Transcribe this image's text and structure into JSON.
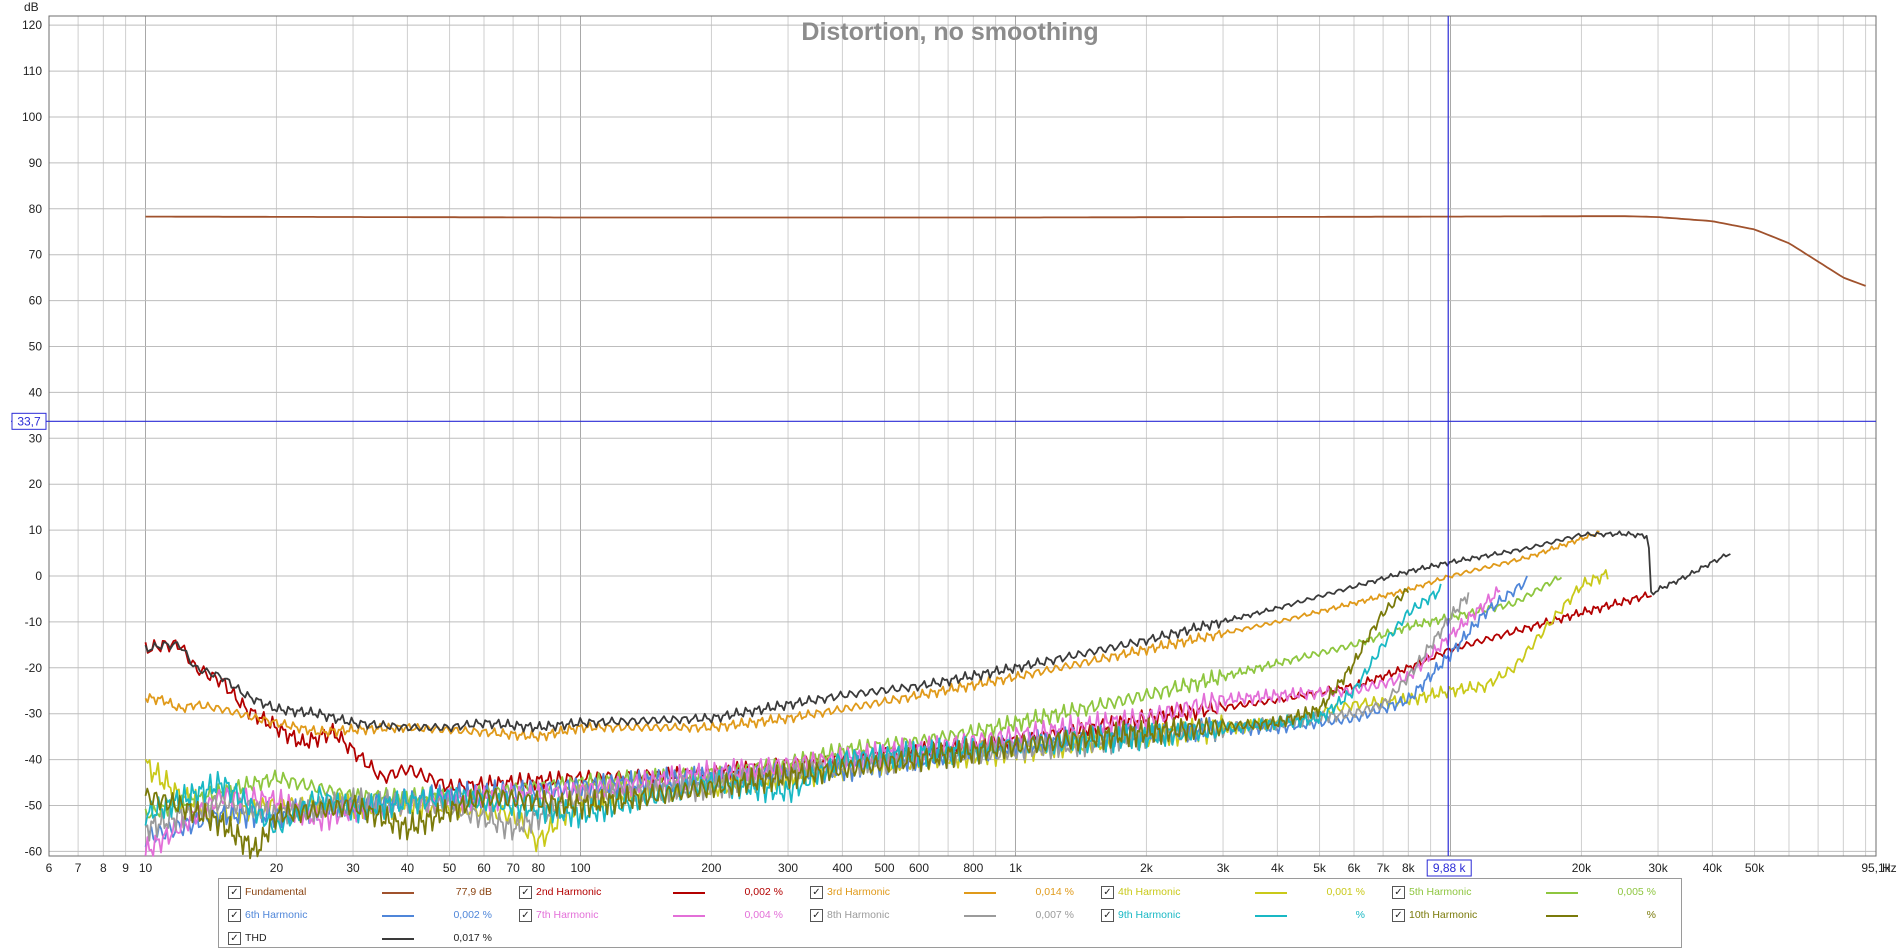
{
  "chart_data": {
    "type": "line",
    "title": "Distortion, no smoothing",
    "ylabel": "dB",
    "xunit": "Hz",
    "xscale": "log",
    "xlim": [
      6,
      95100
    ],
    "ylim": [
      -61,
      122
    ],
    "grid": true,
    "legend_position": "bottom",
    "y_ticks": [
      "120",
      "110",
      "100",
      "90",
      "80",
      "70",
      "60",
      "50",
      "40",
      "30",
      "20",
      "10",
      "0",
      "-10",
      "-20",
      "-30",
      "-40",
      "-50",
      "-60"
    ],
    "x_ticks": [
      {
        "v": 6,
        "label": "6"
      },
      {
        "v": 7,
        "label": "7"
      },
      {
        "v": 8,
        "label": "8"
      },
      {
        "v": 9,
        "label": "9"
      },
      {
        "v": 10,
        "label": "10"
      },
      {
        "v": 20,
        "label": "20"
      },
      {
        "v": 30,
        "label": "30"
      },
      {
        "v": 40,
        "label": "40"
      },
      {
        "v": 50,
        "label": "50"
      },
      {
        "v": 60,
        "label": "60"
      },
      {
        "v": 70,
        "label": "70"
      },
      {
        "v": 80,
        "label": "80"
      },
      {
        "v": 100,
        "label": "100"
      },
      {
        "v": 200,
        "label": "200"
      },
      {
        "v": 300,
        "label": "300"
      },
      {
        "v": 400,
        "label": "400"
      },
      {
        "v": 500,
        "label": "500"
      },
      {
        "v": 600,
        "label": "600"
      },
      {
        "v": 800,
        "label": "800"
      },
      {
        "v": 1000,
        "label": "1k"
      },
      {
        "v": 2000,
        "label": "2k"
      },
      {
        "v": 3000,
        "label": "3k"
      },
      {
        "v": 4000,
        "label": "4k"
      },
      {
        "v": 5000,
        "label": "5k"
      },
      {
        "v": 6000,
        "label": "6k"
      },
      {
        "v": 7000,
        "label": "7k"
      },
      {
        "v": 8000,
        "label": "8k"
      },
      {
        "v": 20000,
        "label": "20k"
      },
      {
        "v": 30000,
        "label": "30k"
      },
      {
        "v": 40000,
        "label": "40k"
      },
      {
        "v": 50000,
        "label": "50k"
      },
      {
        "v": 95100,
        "label": "95,1k"
      }
    ],
    "cursor": {
      "x": 9880,
      "x_label": "9,88 k",
      "y": 33.7,
      "y_label": "33,7",
      "color": "#2b2bd6"
    },
    "series": [
      {
        "name": "Fundamental",
        "color": "#a0522d",
        "value": "77,9 dB",
        "noise": 0,
        "points": [
          [
            10,
            78.3
          ],
          [
            100,
            78.1
          ],
          [
            1000,
            78.1
          ],
          [
            10000,
            78.3
          ],
          [
            25000,
            78.4
          ],
          [
            30000,
            78.2
          ],
          [
            40000,
            77.3
          ],
          [
            50000,
            75.5
          ],
          [
            60000,
            72.5
          ],
          [
            70000,
            68.5
          ],
          [
            80000,
            65
          ],
          [
            90000,
            63.2
          ]
        ]
      },
      {
        "name": "2nd Harmonic",
        "color": "#b30000",
        "value": "0,002 %",
        "noise": 2,
        "points": [
          [
            10,
            -16
          ],
          [
            11,
            -15
          ],
          [
            12,
            -15
          ],
          [
            13,
            -20
          ],
          [
            15,
            -23
          ],
          [
            17,
            -29
          ],
          [
            20,
            -33
          ],
          [
            23,
            -36.5
          ],
          [
            27,
            -34
          ],
          [
            30,
            -38
          ],
          [
            35,
            -44
          ],
          [
            40,
            -42
          ],
          [
            50,
            -46
          ],
          [
            70,
            -45
          ],
          [
            100,
            -44
          ],
          [
            200,
            -43
          ],
          [
            400,
            -40
          ],
          [
            1000,
            -36
          ],
          [
            2000,
            -31
          ],
          [
            4000,
            -27
          ],
          [
            6000,
            -24
          ],
          [
            8000,
            -20
          ],
          [
            10000,
            -16
          ],
          [
            20000,
            -8
          ],
          [
            29000,
            -4
          ]
        ]
      },
      {
        "name": "3rd Harmonic",
        "color": "#e09a1a",
        "value": "0,014 %",
        "noise": 1.2,
        "points": [
          [
            10,
            -26.5
          ],
          [
            11,
            -27
          ],
          [
            12,
            -29
          ],
          [
            13,
            -28
          ],
          [
            15,
            -29
          ],
          [
            18,
            -31
          ],
          [
            20,
            -32
          ],
          [
            25,
            -34
          ],
          [
            30,
            -33.5
          ],
          [
            40,
            -33
          ],
          [
            60,
            -34
          ],
          [
            80,
            -35
          ],
          [
            100,
            -33
          ],
          [
            200,
            -33
          ],
          [
            300,
            -31
          ],
          [
            400,
            -29
          ],
          [
            600,
            -26
          ],
          [
            1000,
            -22
          ],
          [
            2000,
            -16
          ],
          [
            4000,
            -10
          ],
          [
            8000,
            -3
          ],
          [
            10000,
            0
          ],
          [
            15000,
            4
          ],
          [
            22000,
            9.5
          ]
        ]
      },
      {
        "name": "4th Harmonic",
        "color": "#c9c919",
        "value": "0,001 %",
        "noise": 3,
        "points": [
          [
            10,
            -41
          ],
          [
            12,
            -48
          ],
          [
            15,
            -52
          ],
          [
            20,
            -50
          ],
          [
            30,
            -50
          ],
          [
            50,
            -50
          ],
          [
            70,
            -52
          ],
          [
            80,
            -58
          ],
          [
            100,
            -48
          ],
          [
            200,
            -46
          ],
          [
            400,
            -42
          ],
          [
            1000,
            -38
          ],
          [
            2000,
            -35
          ],
          [
            4000,
            -32
          ],
          [
            6000,
            -28
          ],
          [
            8000,
            -27
          ],
          [
            10000,
            -25
          ],
          [
            12000,
            -24
          ],
          [
            14000,
            -20
          ],
          [
            17000,
            -10
          ],
          [
            20000,
            -2
          ],
          [
            23000,
            0.5
          ]
        ]
      },
      {
        "name": "5th Harmonic",
        "color": "#8ec63f",
        "value": "0,005 %",
        "noise": 2,
        "points": [
          [
            10,
            -52
          ],
          [
            15,
            -47
          ],
          [
            20,
            -44
          ],
          [
            30,
            -48
          ],
          [
            50,
            -48
          ],
          [
            100,
            -45
          ],
          [
            200,
            -43
          ],
          [
            300,
            -41
          ],
          [
            400,
            -38
          ],
          [
            600,
            -36
          ],
          [
            800,
            -34
          ],
          [
            1000,
            -32
          ],
          [
            2000,
            -26
          ],
          [
            4000,
            -19
          ],
          [
            6000,
            -15
          ],
          [
            8000,
            -11
          ],
          [
            10000,
            -9
          ],
          [
            14000,
            -6
          ],
          [
            18000,
            0
          ]
        ]
      },
      {
        "name": "6th Harmonic",
        "color": "#4f86d9",
        "value": "0,002 %",
        "noise": 3,
        "points": [
          [
            10,
            -57
          ],
          [
            15,
            -52
          ],
          [
            20,
            -52
          ],
          [
            30,
            -50
          ],
          [
            50,
            -48
          ],
          [
            100,
            -46
          ],
          [
            200,
            -44
          ],
          [
            400,
            -42
          ],
          [
            1000,
            -37
          ],
          [
            2000,
            -34
          ],
          [
            4000,
            -33
          ],
          [
            6000,
            -31
          ],
          [
            8000,
            -27
          ],
          [
            10000,
            -17
          ],
          [
            12000,
            -8
          ],
          [
            15000,
            -1
          ]
        ]
      },
      {
        "name": "7th Harmonic",
        "color": "#e36fd8",
        "value": "0,004 %",
        "noise": 3,
        "points": [
          [
            10,
            -60
          ],
          [
            15,
            -48
          ],
          [
            20,
            -49
          ],
          [
            25,
            -53
          ],
          [
            30,
            -51
          ],
          [
            50,
            -49
          ],
          [
            100,
            -47
          ],
          [
            200,
            -43
          ],
          [
            400,
            -40
          ],
          [
            1000,
            -35
          ],
          [
            2000,
            -31
          ],
          [
            3000,
            -27
          ],
          [
            4000,
            -26
          ],
          [
            6000,
            -25
          ],
          [
            8000,
            -22
          ],
          [
            10000,
            -13
          ],
          [
            13000,
            -3
          ]
        ]
      },
      {
        "name": "8th Harmonic",
        "color": "#9b9b9b",
        "value": "0,007 %",
        "noise": 3,
        "points": [
          [
            10,
            -55
          ],
          [
            15,
            -49
          ],
          [
            20,
            -52
          ],
          [
            30,
            -49
          ],
          [
            50,
            -50
          ],
          [
            70,
            -55
          ],
          [
            100,
            -48
          ],
          [
            200,
            -46
          ],
          [
            400,
            -41
          ],
          [
            1000,
            -38
          ],
          [
            2000,
            -35
          ],
          [
            4000,
            -32
          ],
          [
            6000,
            -30
          ],
          [
            7000,
            -28
          ],
          [
            8000,
            -22
          ],
          [
            10000,
            -9
          ],
          [
            11000,
            -4
          ]
        ]
      },
      {
        "name": "9th Harmonic",
        "color": "#19b8c4",
        "value": "%",
        "noise": 3,
        "points": [
          [
            10,
            -52
          ],
          [
            15,
            -45
          ],
          [
            20,
            -55
          ],
          [
            25,
            -48
          ],
          [
            30,
            -51
          ],
          [
            50,
            -48
          ],
          [
            100,
            -52
          ],
          [
            200,
            -45
          ],
          [
            300,
            -47
          ],
          [
            400,
            -40
          ],
          [
            1000,
            -37
          ],
          [
            2000,
            -35
          ],
          [
            4000,
            -32
          ],
          [
            5000,
            -31
          ],
          [
            6000,
            -25
          ],
          [
            7000,
            -15
          ],
          [
            8000,
            -8
          ],
          [
            9500,
            -3
          ]
        ]
      },
      {
        "name": "10th Harmonic",
        "color": "#7a7a0a",
        "value": "%",
        "noise": 3,
        "points": [
          [
            10,
            -48
          ],
          [
            12,
            -50
          ],
          [
            15,
            -54
          ],
          [
            18,
            -60
          ],
          [
            20,
            -52
          ],
          [
            30,
            -50
          ],
          [
            40,
            -55
          ],
          [
            60,
            -48
          ],
          [
            100,
            -50
          ],
          [
            200,
            -46
          ],
          [
            400,
            -42
          ],
          [
            1000,
            -37
          ],
          [
            2000,
            -34
          ],
          [
            4000,
            -32
          ],
          [
            5000,
            -29
          ],
          [
            5500,
            -24
          ],
          [
            6000,
            -19
          ],
          [
            6500,
            -13
          ],
          [
            7000,
            -8
          ],
          [
            8000,
            -3
          ]
        ]
      },
      {
        "name": "THD",
        "color": "#3a3a3a",
        "value": "0,017 %",
        "noise": 1.2,
        "points": [
          [
            10,
            -16
          ],
          [
            11,
            -15
          ],
          [
            12,
            -15
          ],
          [
            13,
            -20
          ],
          [
            15,
            -22
          ],
          [
            17,
            -26
          ],
          [
            20,
            -29
          ],
          [
            25,
            -30
          ],
          [
            30,
            -32
          ],
          [
            40,
            -33
          ],
          [
            50,
            -33
          ],
          [
            60,
            -32
          ],
          [
            80,
            -33
          ],
          [
            100,
            -32
          ],
          [
            200,
            -31
          ],
          [
            300,
            -28
          ],
          [
            400,
            -26
          ],
          [
            600,
            -24
          ],
          [
            1000,
            -20
          ],
          [
            2000,
            -14
          ],
          [
            4000,
            -7
          ],
          [
            8000,
            1
          ],
          [
            10000,
            3
          ],
          [
            15000,
            6
          ],
          [
            20000,
            9
          ],
          [
            25000,
            9.2
          ],
          [
            28500,
            8.7
          ],
          [
            28900,
            -4
          ],
          [
            30000,
            -3
          ],
          [
            35000,
            0
          ],
          [
            40000,
            3
          ],
          [
            44000,
            5
          ]
        ]
      }
    ]
  }
}
